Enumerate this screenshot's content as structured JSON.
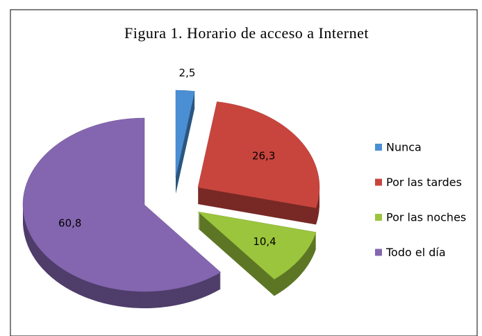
{
  "chart_data": {
    "type": "pie",
    "title": "Figura 1. Horario de acceso a Internet",
    "categories": [
      "Nunca",
      "Por las tardes",
      "Por las noches",
      "Todo el día"
    ],
    "values": [
      2.5,
      26.3,
      10.4,
      60.8
    ],
    "value_labels": [
      "2,5",
      "26,3",
      "10,4",
      "60,8"
    ],
    "colors": [
      "#4a8fd4",
      "#c8453e",
      "#9bc53d",
      "#8466b0"
    ],
    "legend": "right"
  }
}
